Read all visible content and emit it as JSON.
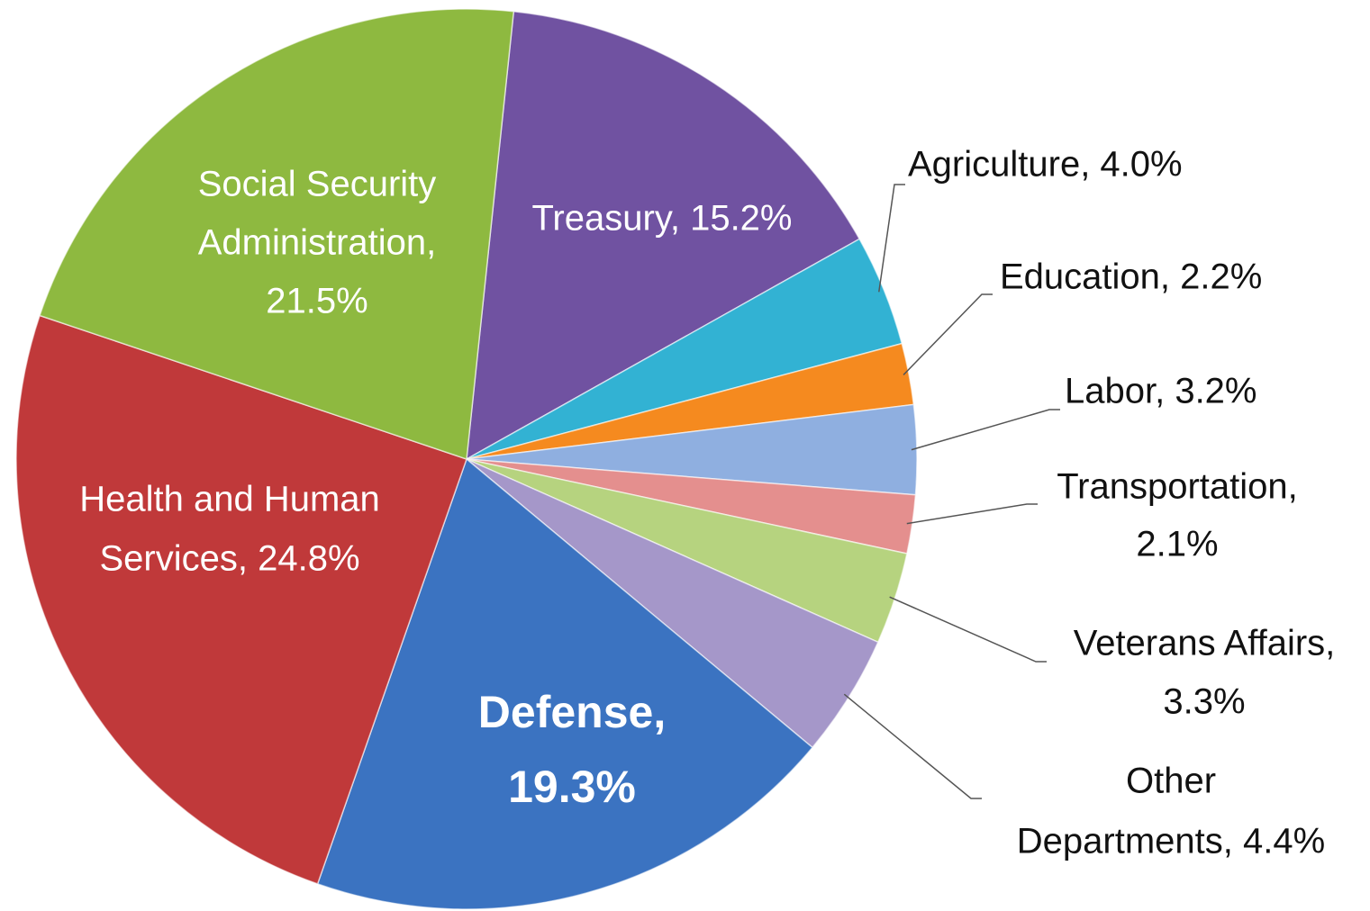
{
  "chart_data": {
    "type": "pie",
    "values": [
      15.2,
      4.0,
      2.2,
      3.2,
      2.1,
      3.3,
      4.4,
      19.3,
      24.8,
      21.5
    ],
    "value_labels": [
      [
        "Treasury, 15.2%"
      ],
      [
        "Agriculture, 4.0%"
      ],
      [
        "Education, 2.2%"
      ],
      [
        "Labor, 3.2%"
      ],
      [
        "Transportation,",
        "2.1%"
      ],
      [
        "Veterans Affairs,",
        "3.3%"
      ],
      [
        "Other",
        "Departments, 4.4%"
      ],
      [
        "Defense,",
        "19.3%"
      ],
      [
        "Health and Human",
        "Services, 24.8%"
      ],
      [
        "Social Security",
        "Administration,",
        "21.5%"
      ]
    ],
    "colors": [
      "#7052a1",
      "#32b2d3",
      "#f58a1f",
      "#8fafe0",
      "#e48f8e",
      "#b6d37f",
      "#a597c9",
      "#3b73c1",
      "#c0393a",
      "#8eb940"
    ]
  }
}
